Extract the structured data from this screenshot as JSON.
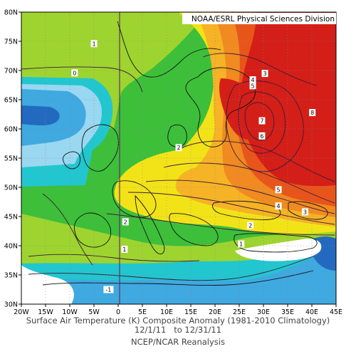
{
  "header": {
    "credit": "NOAA/ESRL Physical Sciences Division"
  },
  "caption": {
    "line1": "Surface Air Temperature (K) Composite Anomaly (1981-2010 Climatology)",
    "line2": "12/1/11   to 12/31/11",
    "line3": "NCEP/NCAR Reanalysis"
  },
  "axes": {
    "lon_labels": [
      "20W",
      "15W",
      "10W",
      "5W",
      "0",
      "5E",
      "10E",
      "15E",
      "20E",
      "25E",
      "30E",
      "35E",
      "40E",
      "45E"
    ],
    "lat_labels": [
      "80N",
      "75N",
      "70N",
      "65N",
      "60N",
      "55N",
      "50N",
      "45N",
      "40N",
      "35N",
      "30N"
    ]
  },
  "contour_labels": [
    {
      "text": "1",
      "lon": -5,
      "lat": 74.6
    },
    {
      "text": "0",
      "lon": -9,
      "lat": 69.6
    },
    {
      "text": "2",
      "lon": 12.5,
      "lat": 56.8
    },
    {
      "text": "2",
      "lon": 1.5,
      "lat": 44.1
    },
    {
      "text": "1",
      "lon": 1.3,
      "lat": 39.4
    },
    {
      "text": "-1",
      "lon": -2,
      "lat": 32.5
    },
    {
      "text": "2",
      "lon": 27.3,
      "lat": 43.5
    },
    {
      "text": "1",
      "lon": 25.4,
      "lat": 40.3
    },
    {
      "text": "3",
      "lon": 30.3,
      "lat": 69.5
    },
    {
      "text": "4",
      "lon": 27.8,
      "lat": 68.4
    },
    {
      "text": "5",
      "lon": 27.8,
      "lat": 67.4
    },
    {
      "text": "7",
      "lon": 29.7,
      "lat": 61.4
    },
    {
      "text": "6",
      "lon": 29.7,
      "lat": 58.8
    },
    {
      "text": "8",
      "lon": 40.1,
      "lat": 62.8
    },
    {
      "text": "5",
      "lon": 33.1,
      "lat": 49.6
    },
    {
      "text": "4",
      "lon": 33.1,
      "lat": 46.8
    },
    {
      "text": "3",
      "lon": 38.6,
      "lat": 45.8
    }
  ],
  "colors": {
    "ocean_blue_light": "#9ad7f0",
    "ocean_blue": "#3fa9e0",
    "ocean_blue_dark": "#2469c0",
    "cyan": "#22c6cf",
    "green_dark": "#27ad3d",
    "green": "#3dbf3a",
    "lime": "#9ed42f",
    "yellow": "#f2e318",
    "orange_light": "#f6b325",
    "orange": "#f08a21",
    "red_orange": "#e8551b",
    "red": "#d41e18"
  }
}
